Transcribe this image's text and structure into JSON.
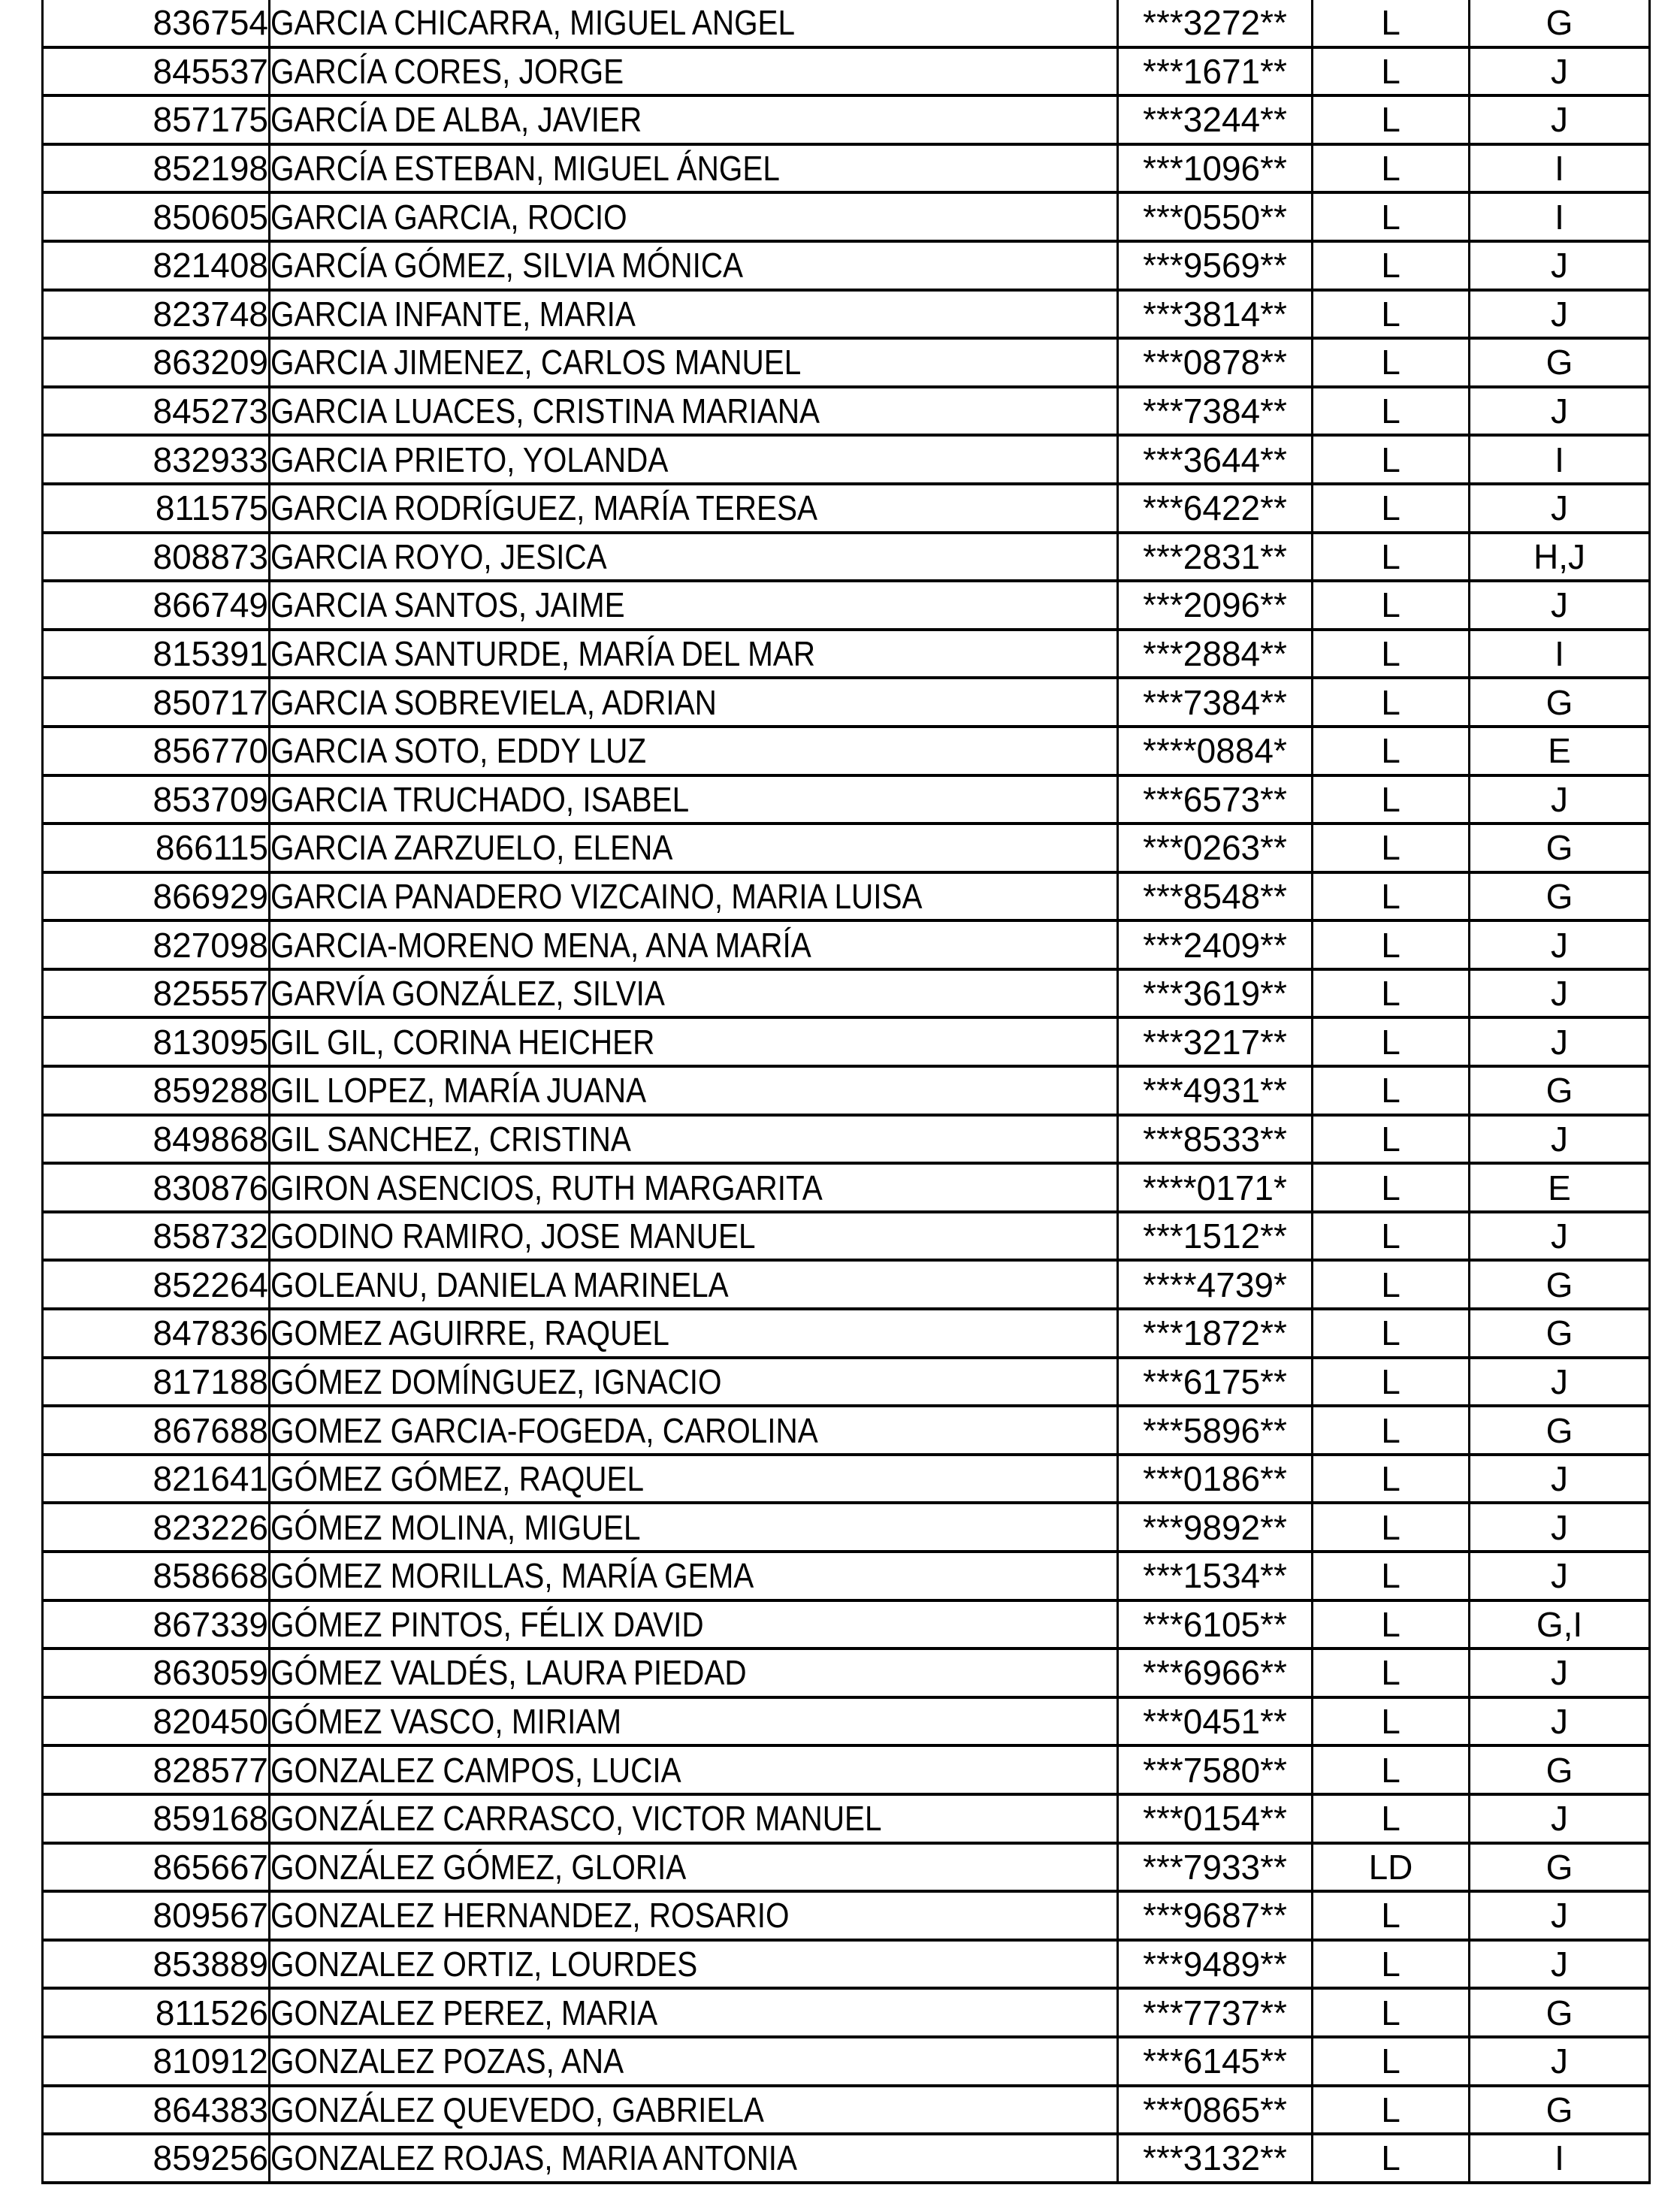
{
  "document": {
    "kind": "personnel-roster-list-page",
    "colors": {
      "background": "#ffffff",
      "grid_border": "#000000",
      "text": "#000000"
    }
  },
  "table": {
    "rows": [
      {
        "id": "836754",
        "name": "GARCIA CHICARRA, MIGUEL ANGEL",
        "masked": "***3272**",
        "type": "L",
        "groups": "G"
      },
      {
        "id": "845537",
        "name": "GARCÍA CORES, JORGE",
        "masked": "***1671**",
        "type": "L",
        "groups": "J"
      },
      {
        "id": "857175",
        "name": "GARCÍA DE ALBA, JAVIER",
        "masked": "***3244**",
        "type": "L",
        "groups": "J"
      },
      {
        "id": "852198",
        "name": "GARCÍA ESTEBAN, MIGUEL ÁNGEL",
        "masked": "***1096**",
        "type": "L",
        "groups": "I"
      },
      {
        "id": "850605",
        "name": "GARCIA GARCIA, ROCIO",
        "masked": "***0550**",
        "type": "L",
        "groups": "I"
      },
      {
        "id": "821408",
        "name": "GARCÍA GÓMEZ, SILVIA MÓNICA",
        "masked": "***9569**",
        "type": "L",
        "groups": "J"
      },
      {
        "id": "823748",
        "name": "GARCIA INFANTE, MARIA",
        "masked": "***3814**",
        "type": "L",
        "groups": "J"
      },
      {
        "id": "863209",
        "name": "GARCIA JIMENEZ, CARLOS MANUEL",
        "masked": "***0878**",
        "type": "L",
        "groups": "G"
      },
      {
        "id": "845273",
        "name": "GARCIA LUACES, CRISTINA MARIANA",
        "masked": "***7384**",
        "type": "L",
        "groups": "J"
      },
      {
        "id": "832933",
        "name": "GARCIA PRIETO, YOLANDA",
        "masked": "***3644**",
        "type": "L",
        "groups": "I"
      },
      {
        "id": "811575",
        "name": "GARCIA RODRÍGUEZ, MARÍA TERESA",
        "masked": "***6422**",
        "type": "L",
        "groups": "J"
      },
      {
        "id": "808873",
        "name": "GARCIA ROYO, JESICA",
        "masked": "***2831**",
        "type": "L",
        "groups": "H,J"
      },
      {
        "id": "866749",
        "name": "GARCIA SANTOS, JAIME",
        "masked": "***2096**",
        "type": "L",
        "groups": "J"
      },
      {
        "id": "815391",
        "name": "GARCIA SANTURDE, MARÍA DEL MAR",
        "masked": "***2884**",
        "type": "L",
        "groups": "I"
      },
      {
        "id": "850717",
        "name": "GARCIA SOBREVIELA, ADRIAN",
        "masked": "***7384**",
        "type": "L",
        "groups": "G"
      },
      {
        "id": "856770",
        "name": "GARCIA SOTO, EDDY LUZ",
        "masked": "****0884*",
        "type": "L",
        "groups": "E"
      },
      {
        "id": "853709",
        "name": "GARCIA TRUCHADO, ISABEL",
        "masked": "***6573**",
        "type": "L",
        "groups": "J"
      },
      {
        "id": "866115",
        "name": "GARCIA ZARZUELO, ELENA",
        "masked": "***0263**",
        "type": "L",
        "groups": "G"
      },
      {
        "id": "866929",
        "name": "GARCIA PANADERO VIZCAINO, MARIA LUISA",
        "masked": "***8548**",
        "type": "L",
        "groups": "G"
      },
      {
        "id": "827098",
        "name": "GARCIA-MORENO MENA, ANA MARÍA",
        "masked": "***2409**",
        "type": "L",
        "groups": "J"
      },
      {
        "id": "825557",
        "name": "GARVÍA GONZÁLEZ, SILVIA",
        "masked": "***3619**",
        "type": "L",
        "groups": "J"
      },
      {
        "id": "813095",
        "name": "GIL GIL, CORINA HEICHER",
        "masked": "***3217**",
        "type": "L",
        "groups": "J"
      },
      {
        "id": "859288",
        "name": "GIL LOPEZ, MARÍA JUANA",
        "masked": "***4931**",
        "type": "L",
        "groups": "G"
      },
      {
        "id": "849868",
        "name": "GIL SANCHEZ, CRISTINA",
        "masked": "***8533**",
        "type": "L",
        "groups": "J"
      },
      {
        "id": "830876",
        "name": "GIRON ASENCIOS, RUTH MARGARITA",
        "masked": "****0171*",
        "type": "L",
        "groups": "E"
      },
      {
        "id": "858732",
        "name": "GODINO RAMIRO, JOSE MANUEL",
        "masked": "***1512**",
        "type": "L",
        "groups": "J"
      },
      {
        "id": "852264",
        "name": "GOLEANU, DANIELA MARINELA",
        "masked": "****4739*",
        "type": "L",
        "groups": "G"
      },
      {
        "id": "847836",
        "name": "GOMEZ AGUIRRE, RAQUEL",
        "masked": "***1872**",
        "type": "L",
        "groups": "G"
      },
      {
        "id": "817188",
        "name": "GÓMEZ DOMÍNGUEZ, IGNACIO",
        "masked": "***6175**",
        "type": "L",
        "groups": "J"
      },
      {
        "id": "867688",
        "name": "GOMEZ GARCIA-FOGEDA, CAROLINA",
        "masked": "***5896**",
        "type": "L",
        "groups": "G"
      },
      {
        "id": "821641",
        "name": "GÓMEZ GÓMEZ, RAQUEL",
        "masked": "***0186**",
        "type": "L",
        "groups": "J"
      },
      {
        "id": "823226",
        "name": "GÓMEZ MOLINA, MIGUEL",
        "masked": "***9892**",
        "type": "L",
        "groups": "J"
      },
      {
        "id": "858668",
        "name": "GÓMEZ MORILLAS, MARÍA GEMA",
        "masked": "***1534**",
        "type": "L",
        "groups": "J"
      },
      {
        "id": "867339",
        "name": "GÓMEZ PINTOS, FÉLIX DAVID",
        "masked": "***6105**",
        "type": "L",
        "groups": "G,I"
      },
      {
        "id": "863059",
        "name": "GÓMEZ VALDÉS, LAURA PIEDAD",
        "masked": "***6966**",
        "type": "L",
        "groups": "J"
      },
      {
        "id": "820450",
        "name": "GÓMEZ VASCO, MIRIAM",
        "masked": "***0451**",
        "type": "L",
        "groups": "J"
      },
      {
        "id": "828577",
        "name": "GONZALEZ CAMPOS, LUCIA",
        "masked": "***7580**",
        "type": "L",
        "groups": "G"
      },
      {
        "id": "859168",
        "name": "GONZÁLEZ CARRASCO, VICTOR MANUEL",
        "masked": "***0154**",
        "type": "L",
        "groups": "J"
      },
      {
        "id": "865667",
        "name": "GONZÁLEZ GÓMEZ, GLORIA",
        "masked": "***7933**",
        "type": "LD",
        "groups": "G"
      },
      {
        "id": "809567",
        "name": "GONZALEZ HERNANDEZ, ROSARIO",
        "masked": "***9687**",
        "type": "L",
        "groups": "J"
      },
      {
        "id": "853889",
        "name": "GONZALEZ ORTIZ, LOURDES",
        "masked": "***9489**",
        "type": "L",
        "groups": "J"
      },
      {
        "id": "811526",
        "name": "GONZALEZ PEREZ, MARIA",
        "masked": "***7737**",
        "type": "L",
        "groups": "G"
      },
      {
        "id": "810912",
        "name": "GONZALEZ POZAS, ANA",
        "masked": "***6145**",
        "type": "L",
        "groups": "J"
      },
      {
        "id": "864383",
        "name": "GONZÁLEZ QUEVEDO, GABRIELA",
        "masked": "***0865**",
        "type": "L",
        "groups": "G"
      },
      {
        "id": "859256",
        "name": "GONZALEZ ROJAS, MARIA ANTONIA",
        "masked": "***3132**",
        "type": "L",
        "groups": "I"
      }
    ]
  }
}
